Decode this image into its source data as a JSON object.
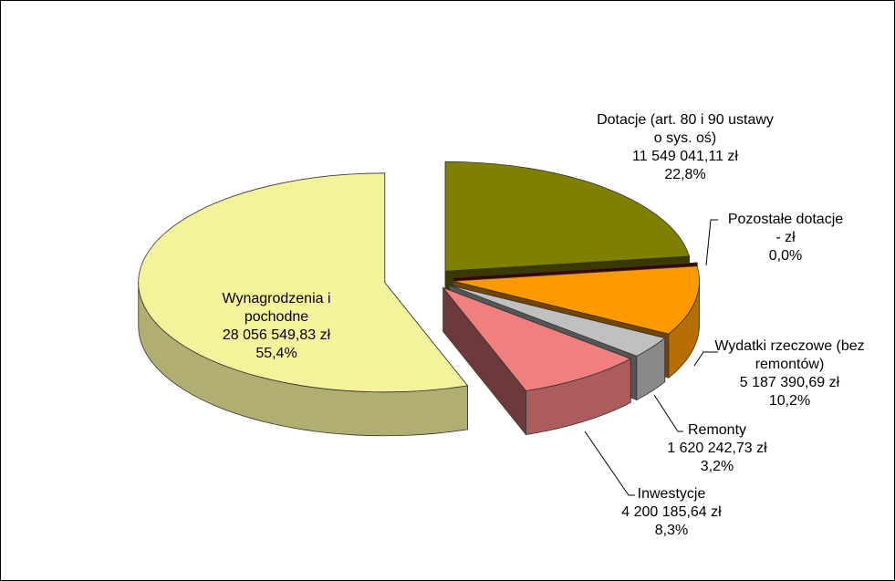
{
  "chart_data": {
    "type": "pie3d",
    "categories": [
      "Dotacje (art. 80 i 90 ustawy o sys. oś)",
      "Pozostałe dotacje",
      "Wydatki rzeczowe (bez remontów)",
      "Remonty",
      "Inwestycje",
      "Wynagrodzenia i pochodne"
    ],
    "values": [
      22.8,
      0.0,
      10.2,
      3.2,
      8.3,
      55.4
    ],
    "value_labels": [
      "22,8%",
      "0,0%",
      "10,2%",
      "3,2%",
      "8,3%",
      "55,4%"
    ],
    "amount_labels": [
      "11 549 041,11 zł",
      "-   zł",
      "5 187 390,69 zł",
      "1 620 242,73 zł",
      "4 200 185,64 zł",
      "28 056 549,83 zł"
    ],
    "colors": [
      "#808000",
      "#8b0000",
      "#ff9900",
      "#c0c0c0",
      "#f08080",
      "#f5f29c"
    ]
  }
}
